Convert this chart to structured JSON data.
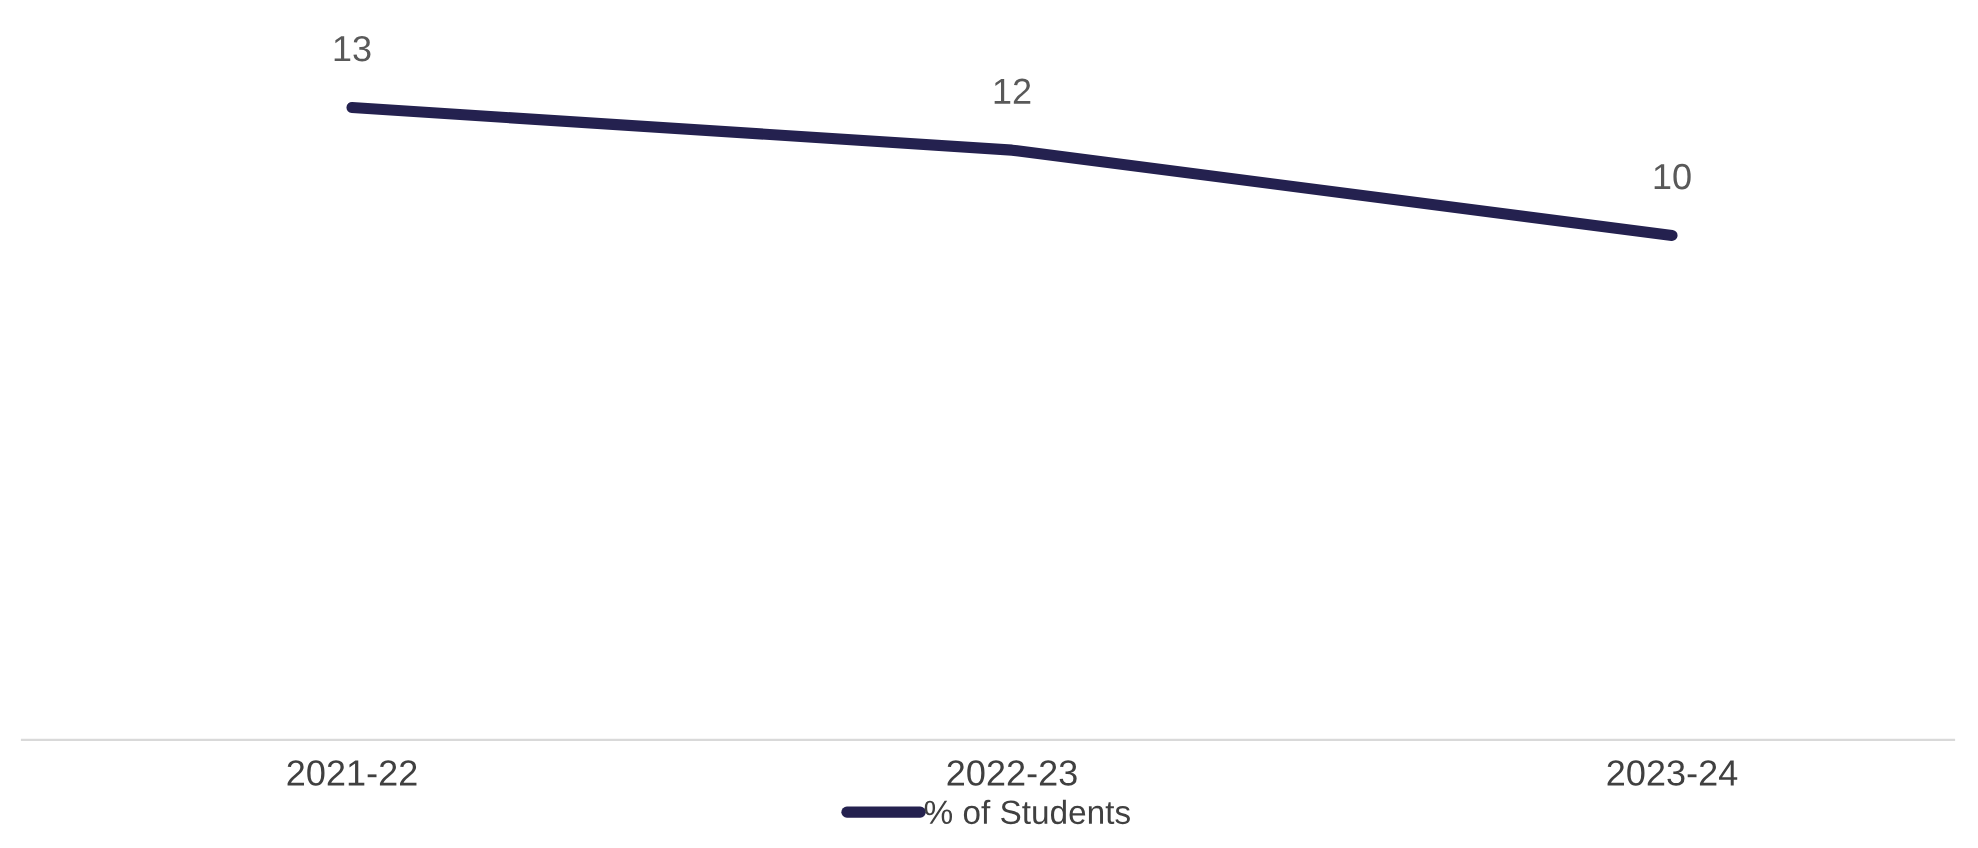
{
  "chart_data": {
    "type": "line",
    "categories": [
      "2021-22",
      "2022-23",
      "2023-24"
    ],
    "series": [
      {
        "name": "% of Students",
        "color": "#24214f",
        "values": [
          13,
          12,
          10
        ]
      }
    ],
    "data_labels": true,
    "grid": false,
    "legend": "bottom",
    "marker": "none",
    "line_style": "solid"
  }
}
